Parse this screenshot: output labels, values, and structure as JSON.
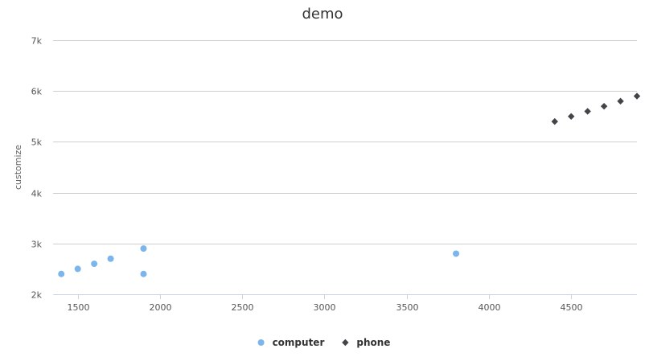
{
  "chart_data": {
    "type": "scatter",
    "title": "demo",
    "xlabel": "",
    "ylabel": "customize",
    "xlim": [
      1350,
      4900
    ],
    "ylim": [
      2000,
      7000
    ],
    "x_ticks": [
      1500,
      2000,
      2500,
      3000,
      3500,
      4000,
      4500
    ],
    "x_tick_labels": [
      "1500",
      "2000",
      "2500",
      "3000",
      "3500",
      "4000",
      "4500"
    ],
    "y_ticks": [
      2000,
      3000,
      4000,
      5000,
      6000,
      7000
    ],
    "y_tick_labels": [
      "2k",
      "3k",
      "4k",
      "5k",
      "6k",
      "7k"
    ],
    "grid": true,
    "legend_position": "bottom",
    "series": [
      {
        "name": "computer",
        "marker": "circle",
        "color": "#7cb5ec",
        "points": [
          {
            "x": 1400,
            "y": 2400
          },
          {
            "x": 1500,
            "y": 2500
          },
          {
            "x": 1600,
            "y": 2600
          },
          {
            "x": 1700,
            "y": 2700
          },
          {
            "x": 1900,
            "y": 2900
          },
          {
            "x": 1900,
            "y": 2400
          },
          {
            "x": 3800,
            "y": 2800
          }
        ]
      },
      {
        "name": "phone",
        "marker": "diamond",
        "color": "#434348",
        "points": [
          {
            "x": 4400,
            "y": 5400
          },
          {
            "x": 4500,
            "y": 5500
          },
          {
            "x": 4600,
            "y": 5600
          },
          {
            "x": 4700,
            "y": 5700
          },
          {
            "x": 4800,
            "y": 5800
          },
          {
            "x": 4900,
            "y": 5900
          }
        ]
      }
    ]
  }
}
